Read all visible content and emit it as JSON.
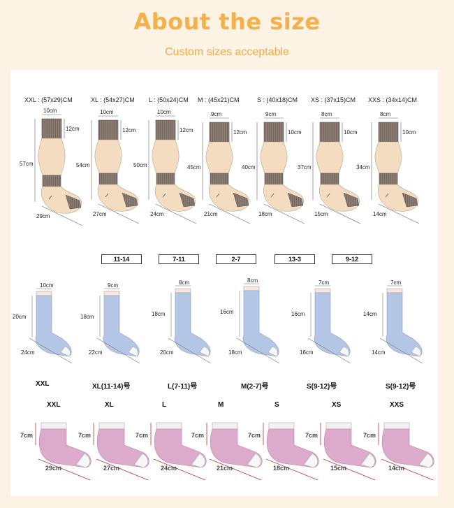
{
  "title": "About the size",
  "subtitle": "Custom sizes acceptable",
  "row1": {
    "socks": [
      {
        "header": "XXL : (57x29)CM",
        "top": "10cm",
        "cuff": "12cm",
        "length": "57cm",
        "foot": "29cm"
      },
      {
        "header": "XL : (54x27)CM",
        "top": "10cm",
        "cuff": "12cm",
        "length": "54cm",
        "foot": "27cm"
      },
      {
        "header": "L : (50x24)CM",
        "top": "10cm",
        "cuff": "12cm",
        "length": "50cm",
        "foot": "24cm"
      },
      {
        "header": "M : (45x21)CM",
        "top": "9cm",
        "cuff": "12cm",
        "length": "45cm",
        "foot": "21cm"
      },
      {
        "header": "S : (40x18)CM",
        "top": "9cm",
        "cuff": "10cm",
        "length": "40cm",
        "foot": "18cm"
      },
      {
        "header": "XS : (37x15)CM",
        "top": "8cm",
        "cuff": "10cm",
        "length": "37cm",
        "foot": "15cm"
      },
      {
        "header": "XXS : (34x14)CM",
        "top": "8cm",
        "cuff": "10cm",
        "length": "34cm",
        "foot": "14cm"
      }
    ],
    "ages": [
      "11-14",
      "7-11",
      "2-7",
      "13-3",
      "9-12"
    ]
  },
  "row2": {
    "socks": [
      {
        "top": "10cm",
        "length": "20cm",
        "foot": "24cm",
        "caption": "XXL"
      },
      {
        "top": "9cm",
        "length": "18cm",
        "foot": "22cm",
        "caption": "XL(11-14)号"
      },
      {
        "top": "8cm",
        "length": "18cm",
        "foot": "20cm",
        "caption": "L(7-11)号"
      },
      {
        "top": "8cm",
        "length": "16cm",
        "foot": "18cm",
        "caption": "M(2-7)号"
      },
      {
        "top": "7cm",
        "length": "16cm",
        "foot": "16cm",
        "caption": "S(9-12)号"
      },
      {
        "top": "7cm",
        "length": "14cm",
        "foot": "14cm",
        "caption": "S(9-12)号"
      }
    ]
  },
  "row3": {
    "socks": [
      {
        "size": "XXL",
        "height": "7cm",
        "foot": "29cm"
      },
      {
        "size": "XL",
        "height": "7cm",
        "foot": "27cm"
      },
      {
        "size": "L",
        "height": "7cm",
        "foot": "24cm"
      },
      {
        "size": "M",
        "height": "7cm",
        "foot": "21cm"
      },
      {
        "size": "S",
        "height": "7cm",
        "foot": "18cm"
      },
      {
        "size": "XS",
        "height": "7cm",
        "foot": "15cm"
      },
      {
        "size": "XXS",
        "height": "7cm",
        "foot": "14cm"
      }
    ]
  },
  "colors": {
    "title": "#f5b04c",
    "tube_skin": "#f3dcc0",
    "tube_band": "#8a7c72",
    "sock_blue": "#b4c6e6",
    "sock_pink": "#dcaacb"
  }
}
